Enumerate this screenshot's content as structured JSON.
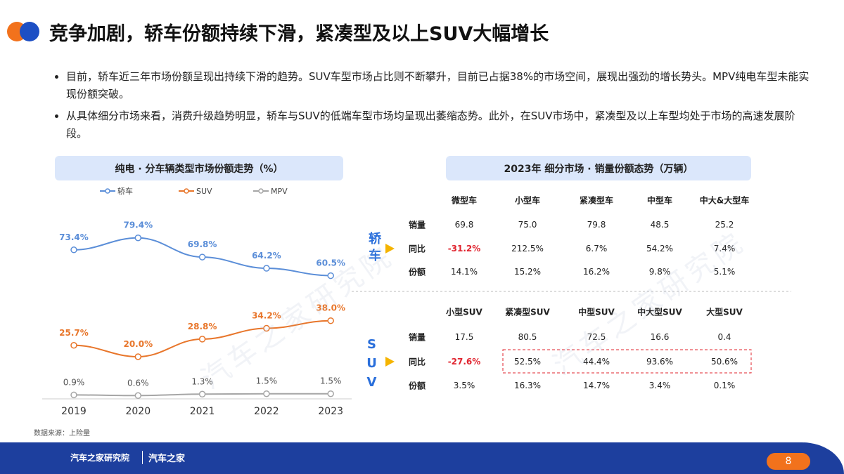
{
  "header": {
    "title": "竞争加剧，轿车份额持续下滑，紧凑型及以上SUV大幅增长"
  },
  "bullets": [
    "目前，轿车近三年市场份额呈现出持续下滑的趋势。SUV车型市场占比则不断攀升，目前已占据38%的市场空间，展现出强劲的增长势头。MPV纯电车型未能实现份额突破。",
    "从具体细分市场来看，消费升级趋势明显，轿车与SUV的低端车型市场均呈现出萎缩态势。此外，在SUV市场中，紧凑型及以上车型均处于市场的高速发展阶段。"
  ],
  "chart_data": {
    "type": "line",
    "title": "纯电 · 分车辆类型市场份额走势（%）",
    "categories": [
      "2019",
      "2020",
      "2021",
      "2022",
      "2023"
    ],
    "series": [
      {
        "name": "轿车",
        "color": "#5b8ed8",
        "values": [
          73.4,
          79.4,
          69.8,
          64.2,
          60.5
        ],
        "value_labels": [
          "73.4%",
          "79.4%",
          "69.8%",
          "64.2%",
          "60.5%"
        ]
      },
      {
        "name": "SUV",
        "color": "#e8762b",
        "values": [
          25.7,
          20.0,
          28.8,
          34.2,
          38.0
        ],
        "value_labels": [
          "25.7%",
          "20.0%",
          "28.8%",
          "34.2%",
          "38.0%"
        ]
      },
      {
        "name": "MPV",
        "color": "#a6a6a6",
        "values": [
          0.9,
          0.6,
          1.3,
          1.5,
          1.5
        ],
        "value_labels": [
          "0.9%",
          "0.6%",
          "1.3%",
          "1.5%",
          "1.5%"
        ]
      }
    ]
  },
  "tables": {
    "title": "2023年 细分市场 · 销量份额态势（万辆）",
    "sedan": {
      "label": "轿车",
      "columns": [
        "微型车",
        "小型车",
        "紧凑型车",
        "中型车",
        "中大&大型车"
      ],
      "rows": [
        {
          "label": "销量",
          "cells": [
            "69.8",
            "75.0",
            "79.8",
            "48.5",
            "25.2"
          ]
        },
        {
          "label": "同比",
          "cells": [
            "-31.2%",
            "212.5%",
            "6.7%",
            "54.2%",
            "7.4%"
          ]
        },
        {
          "label": "份额",
          "cells": [
            "14.1%",
            "15.2%",
            "16.2%",
            "9.8%",
            "5.1%"
          ]
        }
      ]
    },
    "suv": {
      "label": "SUV",
      "columns": [
        "小型SUV",
        "紧凑型SUV",
        "中型SUV",
        "中大型SUV",
        "大型SUV"
      ],
      "rows": [
        {
          "label": "销量",
          "cells": [
            "17.5",
            "80.5",
            "72.5",
            "16.6",
            "0.4"
          ]
        },
        {
          "label": "同比",
          "cells": [
            "-27.6%",
            "52.5%",
            "44.4%",
            "93.6%",
            "50.6%"
          ]
        },
        {
          "label": "份额",
          "cells": [
            "3.5%",
            "16.3%",
            "14.7%",
            "3.4%",
            "0.1%"
          ]
        }
      ]
    }
  },
  "source": "数据来源：上险量",
  "watermark": "汽车之家研究院",
  "footer": {
    "brand": "汽车之家研究院",
    "logo": "汽车之家",
    "page": "8"
  }
}
